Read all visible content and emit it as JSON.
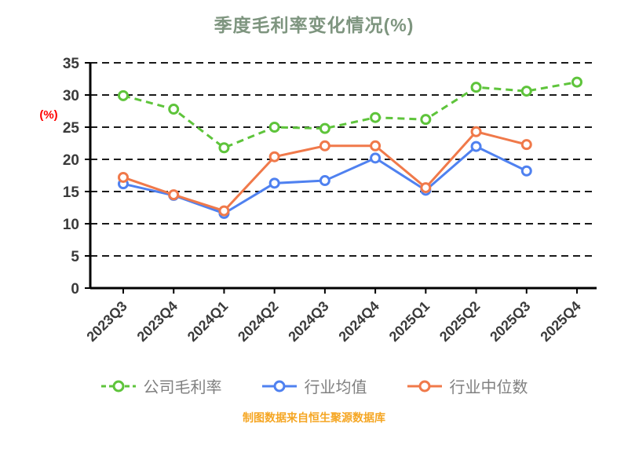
{
  "title": "季度毛利率变化情况(%)",
  "y_axis_label": "(%)",
  "footer": "制图数据来自恒生聚源数据库",
  "colors": {
    "title": "#7E957F",
    "axis": "#000000",
    "grid": "#1a1a1a",
    "tick_label": "#3a3a3a",
    "legend_text": "#808080",
    "footer": "#F5A623",
    "ylabel": "#FF0000"
  },
  "chart_data": {
    "type": "line",
    "title": "季度毛利率变化情况(%)",
    "categories": [
      "2023Q3",
      "2023Q4",
      "2024Q1",
      "2024Q2",
      "2024Q3",
      "2024Q4",
      "2025Q1",
      "2025Q2",
      "2025Q3",
      "2025Q4"
    ],
    "series": [
      {
        "name": "公司毛利率",
        "color": "#5EC43B",
        "dashed": true,
        "values": [
          29.9,
          27.8,
          21.8,
          25.0,
          24.8,
          26.5,
          26.2,
          31.2,
          30.6,
          32.0
        ]
      },
      {
        "name": "行业均值",
        "color": "#4F81F0",
        "dashed": false,
        "values": [
          16.2,
          14.4,
          11.6,
          16.3,
          16.7,
          20.2,
          15.2,
          22.0,
          18.2,
          null
        ]
      },
      {
        "name": "行业中位数",
        "color": "#F0794A",
        "dashed": false,
        "values": [
          17.2,
          14.5,
          12.0,
          20.4,
          22.1,
          22.1,
          15.6,
          24.3,
          22.3,
          null
        ]
      }
    ],
    "ylabel": "(%)",
    "ylim": [
      0,
      35
    ],
    "ytick_step": 5,
    "grid": true,
    "legend_position": "bottom"
  }
}
